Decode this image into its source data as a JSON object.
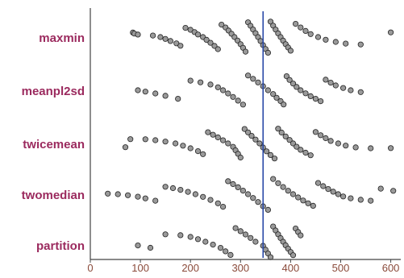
{
  "colors": {
    "category_label": "#9b2a5e",
    "tick_label": "#8a4a3a",
    "axis": "#444444",
    "marker_fill": "#9a9a9a",
    "marker_stroke": "#222222",
    "reference_line": "#2a4aa8"
  },
  "chart_data": {
    "type": "scatter",
    "subtype": "dot-strip",
    "title": "",
    "xlabel": "",
    "ylabel": "",
    "xlim": [
      0,
      620
    ],
    "x_ticks": [
      "0",
      "100",
      "200",
      "300",
      "400",
      "500",
      "600"
    ],
    "x_tick_values": [
      0,
      100,
      200,
      300,
      400,
      500,
      600
    ],
    "reference_line_x": 345,
    "grid": false,
    "legend": "none",
    "categories": [
      "maxmin",
      "meanpl2sd",
      "twicemean",
      "twomedian",
      "partition"
    ],
    "series": [
      {
        "name": "maxmin",
        "x": [
          85,
          88,
          95,
          125,
          140,
          150,
          160,
          172,
          180,
          190,
          200,
          208,
          215,
          225,
          232,
          240,
          248,
          255,
          262,
          270,
          276,
          282,
          288,
          294,
          300,
          305,
          310,
          315,
          320,
          325,
          330,
          335,
          340,
          345,
          350,
          355,
          360,
          365,
          370,
          375,
          380,
          385,
          390,
          395,
          400,
          410,
          420,
          430,
          440,
          455,
          470,
          490,
          510,
          540,
          600
        ]
      },
      {
        "name": "meanpl2sd",
        "x": [
          95,
          110,
          130,
          150,
          175,
          200,
          220,
          240,
          255,
          265,
          275,
          285,
          295,
          305,
          315,
          325,
          335,
          345,
          355,
          365,
          372,
          380,
          386,
          392,
          398,
          405,
          412,
          420,
          430,
          440,
          450,
          460,
          470,
          480,
          490,
          505,
          520,
          540
        ]
      },
      {
        "name": "twicemean",
        "x": [
          70,
          80,
          110,
          130,
          150,
          170,
          185,
          200,
          215,
          225,
          235,
          245,
          255,
          265,
          275,
          285,
          290,
          295,
          300,
          308,
          315,
          322,
          330,
          338,
          345,
          352,
          360,
          368,
          375,
          382,
          390,
          398,
          405,
          412,
          420,
          430,
          440,
          450,
          460,
          470,
          480,
          495,
          510,
          530,
          560,
          600
        ]
      },
      {
        "name": "twomedian",
        "x": [
          35,
          55,
          75,
          95,
          110,
          130,
          150,
          165,
          180,
          195,
          210,
          225,
          240,
          255,
          265,
          275,
          285,
          295,
          305,
          315,
          325,
          335,
          345,
          355,
          365,
          375,
          385,
          395,
          405,
          415,
          425,
          435,
          445,
          455,
          465,
          475,
          485,
          495,
          505,
          520,
          540,
          560,
          580,
          605
        ]
      },
      {
        "name": "partition",
        "x": [
          95,
          120,
          150,
          180,
          200,
          215,
          230,
          245,
          260,
          270,
          280,
          290,
          300,
          310,
          320,
          330,
          345,
          350,
          355,
          360,
          365,
          370,
          375,
          380,
          385,
          390,
          395,
          400,
          405,
          410,
          415,
          420
        ]
      }
    ]
  }
}
